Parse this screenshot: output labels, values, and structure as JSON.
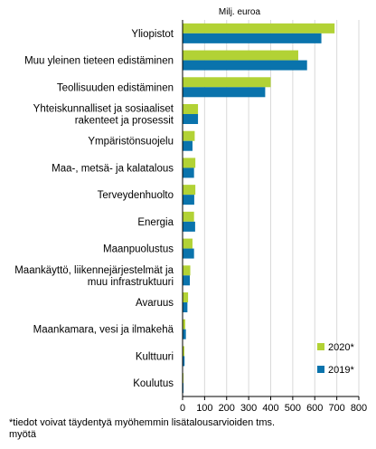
{
  "chart_data": {
    "type": "bar",
    "orientation": "horizontal",
    "unit_label": "Milj. euroa",
    "categories": [
      [
        "Yliopistot"
      ],
      [
        "Muu yleinen tieteen edistäminen"
      ],
      [
        "Teollisuuden edistäminen"
      ],
      [
        "Yhteiskunnalliset ja sosiaaliset",
        "rakenteet ja prosessit"
      ],
      [
        "Ympäristönsuojelu"
      ],
      [
        "Maa-, metsä- ja kalatalous"
      ],
      [
        "Terveydenhuolto"
      ],
      [
        "Energia"
      ],
      [
        "Maanpuolustus"
      ],
      [
        "Maankäyttö, liikennejärjestelmät ja",
        "muu infrastruktuuri"
      ],
      [
        "Avaruus"
      ],
      [
        "Maankamara, vesi ja ilmakehä"
      ],
      [
        "Kulttuuri"
      ],
      [
        "Koulutus"
      ]
    ],
    "series": [
      {
        "name": "2020*",
        "color": "#b2d235",
        "values": [
          690,
          525,
          400,
          70,
          55,
          58,
          58,
          52,
          45,
          35,
          25,
          12,
          8,
          4
        ]
      },
      {
        "name": "2019*",
        "color": "#0a73ac",
        "values": [
          630,
          565,
          375,
          70,
          45,
          52,
          53,
          57,
          52,
          33,
          22,
          15,
          9,
          4
        ]
      }
    ],
    "xlim": [
      0,
      800
    ],
    "xticks": [
      0,
      100,
      200,
      300,
      400,
      500,
      600,
      700,
      800
    ],
    "grid": true,
    "legend_position": "bottom-right"
  },
  "footnote": [
    "*tiedot voivat täydentyä myöhemmin lisätalousarvioiden tms.",
    "myötä"
  ]
}
